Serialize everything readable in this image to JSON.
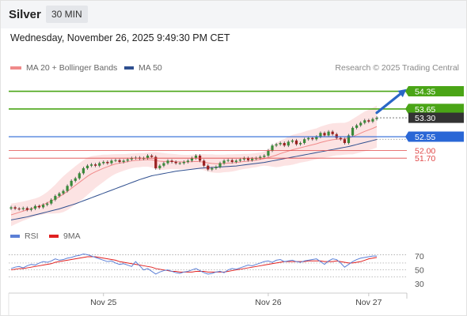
{
  "header": {
    "instrument": "Silver",
    "timeframe": "30 MIN"
  },
  "datetime": "Wednesday, November 26, 2025 9:49:30 PM CET",
  "legend": {
    "ma20": {
      "label": "MA 20 + Bollinger Bands",
      "color": "#f08a8a"
    },
    "ma50": {
      "label": "MA 50",
      "color": "#2f4f8f"
    }
  },
  "research": "Research © 2025 Trading Central",
  "rsi_legend": {
    "rsi": {
      "label": "RSI",
      "color": "#5b7fd6"
    },
    "ma9": {
      "label": "9MA",
      "color": "#e02020"
    }
  },
  "chart_data": [
    {
      "type": "candlestick",
      "title": "Silver 30 MIN",
      "ylim": [
        49.2,
        54.9
      ],
      "x_ticks": [
        "Nov 25",
        "Nov 26",
        "Nov 27"
      ],
      "levels": [
        {
          "value": 54.35,
          "label": "54.35",
          "kind": "resistance",
          "color": "#4aa516"
        },
        {
          "value": 53.65,
          "label": "53.65",
          "kind": "resistance",
          "color": "#4aa516"
        },
        {
          "value": 53.3,
          "label": "53.30",
          "kind": "last-price",
          "color": "#333333"
        },
        {
          "value": 52.55,
          "label": "52.55",
          "kind": "pivot",
          "color": "#2a67d6"
        },
        {
          "value": 52.0,
          "label": "52.00",
          "kind": "support",
          "color": "#e04848"
        },
        {
          "value": 51.7,
          "label": "51.70",
          "kind": "support",
          "color": "#e04848"
        }
      ],
      "close": [
        49.75,
        49.7,
        49.68,
        49.72,
        49.65,
        49.7,
        49.8,
        49.75,
        49.85,
        49.9,
        50.05,
        50.2,
        50.3,
        50.4,
        50.6,
        50.8,
        50.9,
        51.1,
        51.3,
        51.4,
        51.45,
        51.4,
        51.5,
        51.55,
        51.5,
        51.6,
        51.62,
        51.55,
        51.6,
        51.65,
        51.7,
        51.72,
        51.68,
        51.7,
        51.8,
        51.75,
        51.3,
        51.4,
        51.5,
        51.6,
        51.55,
        51.5,
        51.5,
        51.55,
        51.6,
        51.7,
        51.8,
        51.6,
        51.4,
        51.25,
        51.3,
        51.35,
        51.5,
        51.6,
        51.62,
        51.55,
        51.6,
        51.65,
        51.7,
        51.62,
        51.68,
        51.7,
        51.75,
        51.8,
        52.0,
        52.2,
        52.25,
        52.3,
        52.2,
        52.35,
        52.4,
        52.25,
        52.3,
        52.45,
        52.5,
        52.45,
        52.55,
        52.7,
        52.6,
        52.75,
        52.65,
        52.5,
        52.45,
        52.3,
        52.6,
        52.9,
        53.0,
        53.1,
        53.2,
        53.15,
        53.25,
        53.3
      ],
      "ma20": [
        49.45,
        49.5,
        49.55,
        49.6,
        49.65,
        49.7,
        49.75,
        49.8,
        49.86,
        49.93,
        50.0,
        50.08,
        50.17,
        50.27,
        50.38,
        50.5,
        50.62,
        50.74,
        50.86,
        50.98,
        51.08,
        51.16,
        51.23,
        51.3,
        51.36,
        51.42,
        51.47,
        51.5,
        51.53,
        51.56,
        51.59,
        51.61,
        51.62,
        51.63,
        51.64,
        51.63,
        51.6,
        51.58,
        51.57,
        51.57,
        51.57,
        51.56,
        51.55,
        51.55,
        51.55,
        51.56,
        51.57,
        51.56,
        51.54,
        51.51,
        51.49,
        51.48,
        51.48,
        51.49,
        51.5,
        51.51,
        51.53,
        51.55,
        51.57,
        51.58,
        51.6,
        51.62,
        51.65,
        51.68,
        51.72,
        51.77,
        51.82,
        51.88,
        51.93,
        51.98,
        52.03,
        52.07,
        52.11,
        52.15,
        52.19,
        52.23,
        52.27,
        52.32,
        52.36,
        52.4,
        52.43,
        52.45,
        52.46,
        52.47,
        52.5,
        52.55,
        52.62,
        52.69,
        52.76,
        52.82,
        52.88,
        52.95
      ],
      "boll_upper": [
        49.9,
        49.92,
        49.95,
        49.98,
        50.02,
        50.06,
        50.1,
        50.16,
        50.25,
        50.36,
        50.5,
        50.65,
        50.82,
        50.98,
        51.12,
        51.25,
        51.38,
        51.5,
        51.62,
        51.72,
        51.78,
        51.8,
        51.82,
        51.84,
        51.84,
        51.85,
        51.86,
        51.86,
        51.86,
        51.87,
        51.88,
        51.89,
        51.9,
        51.9,
        51.92,
        51.93,
        51.94,
        51.92,
        51.9,
        51.88,
        51.87,
        51.86,
        51.84,
        51.83,
        51.83,
        51.84,
        51.86,
        51.86,
        51.86,
        51.85,
        51.85,
        51.84,
        51.84,
        51.84,
        51.85,
        51.85,
        51.86,
        51.86,
        51.87,
        51.87,
        51.88,
        51.9,
        51.92,
        51.96,
        52.05,
        52.18,
        52.3,
        52.4,
        52.46,
        52.55,
        52.62,
        52.66,
        52.7,
        52.75,
        52.8,
        52.84,
        52.88,
        52.95,
        53.0,
        53.05,
        53.08,
        53.09,
        53.1,
        53.1,
        53.15,
        53.25,
        53.35,
        53.45,
        53.55,
        53.62,
        53.7,
        53.78
      ],
      "boll_lower": [
        49.0,
        49.08,
        49.15,
        49.22,
        49.28,
        49.34,
        49.4,
        49.44,
        49.47,
        49.5,
        49.5,
        49.51,
        49.52,
        49.56,
        49.64,
        49.75,
        49.86,
        49.98,
        50.1,
        50.24,
        50.38,
        50.52,
        50.64,
        50.76,
        50.88,
        50.99,
        51.08,
        51.14,
        51.2,
        51.25,
        51.3,
        51.33,
        51.34,
        51.36,
        51.36,
        51.33,
        51.26,
        51.24,
        51.24,
        51.26,
        51.27,
        51.26,
        51.26,
        51.27,
        51.27,
        51.28,
        51.28,
        51.26,
        51.22,
        51.17,
        51.13,
        51.12,
        51.12,
        51.14,
        51.15,
        51.17,
        51.2,
        51.24,
        51.27,
        51.29,
        51.32,
        51.34,
        51.38,
        51.4,
        51.39,
        51.36,
        51.34,
        51.36,
        51.4,
        51.41,
        51.44,
        51.48,
        51.52,
        51.55,
        51.58,
        51.62,
        51.66,
        51.69,
        51.72,
        51.75,
        51.78,
        51.81,
        51.82,
        51.84,
        51.85,
        51.85,
        51.89,
        51.93,
        51.97,
        52.02,
        52.06,
        52.12
      ],
      "ma50": [
        49.25,
        49.28,
        49.31,
        49.34,
        49.37,
        49.41,
        49.45,
        49.49,
        49.53,
        49.57,
        49.61,
        49.65,
        49.69,
        49.74,
        49.79,
        49.84,
        49.89,
        49.95,
        50.01,
        50.07,
        50.13,
        50.19,
        50.25,
        50.31,
        50.37,
        50.43,
        50.49,
        50.55,
        50.61,
        50.67,
        50.73,
        50.79,
        50.85,
        50.9,
        50.95,
        51.0,
        51.03,
        51.06,
        51.09,
        51.12,
        51.15,
        51.18,
        51.2,
        51.22,
        51.24,
        51.26,
        51.28,
        51.3,
        51.31,
        51.32,
        51.33,
        51.34,
        51.35,
        51.36,
        51.37,
        51.38,
        51.39,
        51.41,
        51.43,
        51.45,
        51.47,
        51.49,
        51.51,
        51.53,
        51.56,
        51.59,
        51.62,
        51.65,
        51.68,
        51.71,
        51.74,
        51.77,
        51.8,
        51.83,
        51.86,
        51.89,
        51.92,
        51.95,
        51.98,
        52.01,
        52.04,
        52.07,
        52.1,
        52.13,
        52.16,
        52.2,
        52.24,
        52.28,
        52.32,
        52.36,
        52.4,
        52.44
      ]
    },
    {
      "type": "line",
      "title": "RSI",
      "ylim": [
        20,
        85
      ],
      "y_ticks": [
        "70",
        "50",
        "30"
      ],
      "dotted_levels": [
        72,
        60,
        50,
        40
      ],
      "series": [
        {
          "name": "RSI",
          "values": [
            52,
            54,
            55,
            53,
            56,
            58,
            57,
            60,
            62,
            61,
            63,
            66,
            64,
            65,
            67,
            68,
            70,
            71,
            73,
            72,
            70,
            68,
            66,
            64,
            62,
            63,
            60,
            58,
            59,
            57,
            55,
            62,
            56,
            50,
            52,
            48,
            44,
            47,
            49,
            50,
            48,
            46,
            45,
            47,
            48,
            50,
            52,
            49,
            46,
            44,
            45,
            47,
            48,
            46,
            50,
            52,
            51,
            53,
            55,
            57,
            56,
            58,
            60,
            62,
            63,
            61,
            64,
            65,
            62,
            63,
            64,
            62,
            61,
            63,
            64,
            65,
            66,
            62,
            58,
            63,
            66,
            65,
            60,
            54,
            58,
            62,
            65,
            67,
            68,
            69,
            70,
            70
          ]
        },
        {
          "name": "9MA",
          "values": [
            50,
            51,
            52,
            52,
            53,
            54,
            55,
            56,
            57,
            58,
            59,
            61,
            62,
            63,
            64,
            65,
            66,
            67,
            68,
            69,
            69,
            69,
            68,
            67,
            66,
            65,
            64,
            62,
            61,
            60,
            59,
            58,
            57,
            56,
            55,
            54,
            52,
            51,
            50,
            49,
            48,
            48,
            47,
            47,
            47,
            47,
            48,
            48,
            48,
            47,
            47,
            47,
            47,
            47,
            48,
            49,
            50,
            51,
            52,
            53,
            54,
            55,
            56,
            57,
            58,
            59,
            60,
            61,
            62,
            62,
            62,
            62,
            62,
            62,
            63,
            63,
            63,
            63,
            62,
            62,
            62,
            63,
            62,
            61,
            60,
            60,
            61,
            62,
            64,
            66,
            67,
            68
          ]
        }
      ]
    }
  ]
}
